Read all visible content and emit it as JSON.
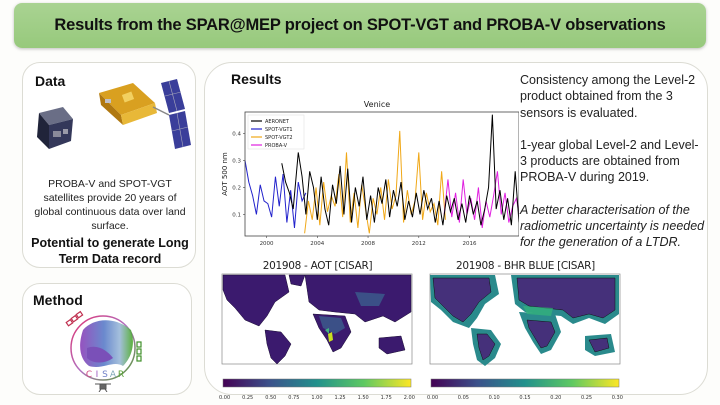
{
  "banner": {
    "title": "Results from the SPAR@MEP project on SPOT-VGT and PROBA-V observations"
  },
  "data_panel": {
    "title": "Data",
    "description": "PROBA-V and SPOT-VGT satellites provide 20 years of global continuous data over land surface.",
    "potential": "Potential to generate Long Term Data record",
    "images": [
      "proba-v-satellite",
      "spot-vgt-satellite"
    ]
  },
  "method_panel": {
    "title": "Method",
    "logo_text": "CISAR",
    "logo_letters": [
      "C",
      "I",
      "S",
      "A",
      "R"
    ]
  },
  "results_panel": {
    "title": "Results",
    "findings": [
      "Consistency among the Level-2 product obtained from the 3 sensors is evaluated.",
      "1-year global Level-2 and Level-3 products are obtained from PROBA-V during 2019.",
      "A better characterisation of the radiometric uncertainty is needed for the generation of a LTDR."
    ],
    "maps": [
      {
        "title": "201908 - AOT [CISAR]",
        "colorbar_ticks": [
          "0.00",
          "0.25",
          "0.50",
          "0.75",
          "1.00",
          "1.25",
          "1.50",
          "1.75",
          "2.00"
        ],
        "colormap": "viridis"
      },
      {
        "title": "201908 - BHR BLUE [CISAR]",
        "colorbar_ticks": [
          "0.00",
          "0.05",
          "0.10",
          "0.15",
          "0.20",
          "0.25",
          "0.30"
        ],
        "colormap": "viridis"
      }
    ]
  },
  "chart_data": {
    "type": "line",
    "title": "Venice",
    "xlabel": "",
    "ylabel": "AOT 500 nm",
    "xlim": [
      1998.3,
      2019.9
    ],
    "ylim": [
      0.02,
      0.48
    ],
    "xticks": [
      2000,
      2004,
      2008,
      2012,
      2016
    ],
    "yticks": [
      0.1,
      0.2,
      0.3,
      0.4
    ],
    "legend_position": "top-left",
    "grid": false,
    "series": [
      {
        "name": "AERONET",
        "color": "#000000",
        "x": [
          2001.2,
          2001.5,
          2001.8,
          2002.1,
          2002.5,
          2002.8,
          2003.1,
          2003.4,
          2003.7,
          2004.0,
          2004.3,
          2004.6,
          2004.9,
          2005.2,
          2005.5,
          2005.8,
          2006.1,
          2006.4,
          2006.7,
          2007.0,
          2007.3,
          2007.6,
          2007.9,
          2008.2,
          2008.5,
          2008.8,
          2009.1,
          2009.4,
          2009.7,
          2010.0,
          2010.3,
          2010.6,
          2010.9,
          2011.2,
          2011.5,
          2011.8,
          2012.1,
          2012.4,
          2012.7,
          2013.0,
          2013.3,
          2013.6,
          2013.9,
          2014.2,
          2014.5,
          2014.8,
          2015.1,
          2015.4,
          2015.7,
          2016.0,
          2016.3,
          2016.6,
          2016.9,
          2017.2,
          2017.5,
          2017.8,
          2018.1,
          2018.4,
          2018.7,
          2019.0,
          2019.3,
          2019.6,
          2019.9
        ],
        "values": [
          0.29,
          0.22,
          0.18,
          0.12,
          0.33,
          0.24,
          0.1,
          0.26,
          0.2,
          0.08,
          0.24,
          0.12,
          0.06,
          0.21,
          0.14,
          0.28,
          0.1,
          0.27,
          0.07,
          0.2,
          0.13,
          0.24,
          0.08,
          0.17,
          0.07,
          0.2,
          0.14,
          0.23,
          0.09,
          0.19,
          0.13,
          0.22,
          0.08,
          0.15,
          0.09,
          0.18,
          0.1,
          0.19,
          0.12,
          0.16,
          0.07,
          0.15,
          0.06,
          0.17,
          0.11,
          0.16,
          0.08,
          0.14,
          0.07,
          0.17,
          0.1,
          0.15,
          0.06,
          0.12,
          0.2,
          0.47,
          0.12,
          0.19,
          0.08,
          0.16,
          0.06,
          0.26,
          0.07
        ]
      },
      {
        "name": "SPOT-VGT1",
        "color": "#2222cc",
        "x": [
          1998.3,
          1998.6,
          1998.9,
          1999.2,
          1999.5,
          1999.8,
          2000.1,
          2000.4,
          2000.7,
          2001.0,
          2001.3,
          2001.6,
          2001.9,
          2002.2,
          2002.5,
          2002.8,
          2003.1
        ],
        "values": [
          0.3,
          0.22,
          0.17,
          0.1,
          0.21,
          0.15,
          0.14,
          0.09,
          0.24,
          0.13,
          0.25,
          0.07,
          0.19,
          0.05,
          0.22,
          0.15,
          0.18
        ]
      },
      {
        "name": "SPOT-VGT2",
        "color": "#f0a818",
        "x": [
          2003.0,
          2003.3,
          2003.6,
          2003.9,
          2004.2,
          2004.5,
          2004.8,
          2005.1,
          2005.4,
          2005.7,
          2006.0,
          2006.3,
          2006.6,
          2006.9,
          2007.2,
          2007.5,
          2007.8,
          2008.1,
          2008.4,
          2008.7,
          2009.0,
          2009.3,
          2009.6,
          2009.9,
          2010.2,
          2010.5,
          2010.8,
          2011.1,
          2011.4,
          2011.7,
          2012.0,
          2012.3,
          2012.6,
          2012.9,
          2013.2,
          2013.5,
          2013.8,
          2014.1
        ],
        "values": [
          0.03,
          0.15,
          0.08,
          0.2,
          0.06,
          0.22,
          0.11,
          0.17,
          0.13,
          0.25,
          0.09,
          0.33,
          0.07,
          0.18,
          0.05,
          0.21,
          0.12,
          0.03,
          0.16,
          0.1,
          0.2,
          0.08,
          0.23,
          0.12,
          0.17,
          0.41,
          0.07,
          0.19,
          0.1,
          0.15,
          0.33,
          0.08,
          0.18,
          0.11,
          0.14,
          0.06,
          0.26,
          0.08
        ]
      },
      {
        "name": "PROBA-V",
        "color": "#e020e0",
        "x": [
          2014.0,
          2014.3,
          2014.6,
          2014.9,
          2015.2,
          2015.5,
          2015.8,
          2016.1,
          2016.4,
          2016.7,
          2017.0,
          2017.3,
          2017.6,
          2017.9,
          2018.2,
          2018.5,
          2018.8,
          2019.1,
          2019.4,
          2019.7,
          2019.9
        ],
        "values": [
          0.1,
          0.23,
          0.09,
          0.18,
          0.07,
          0.23,
          0.1,
          0.16,
          0.08,
          0.2,
          0.05,
          0.15,
          0.09,
          0.17,
          0.26,
          0.1,
          0.18,
          0.07,
          0.13,
          0.16,
          0.1
        ]
      }
    ]
  }
}
